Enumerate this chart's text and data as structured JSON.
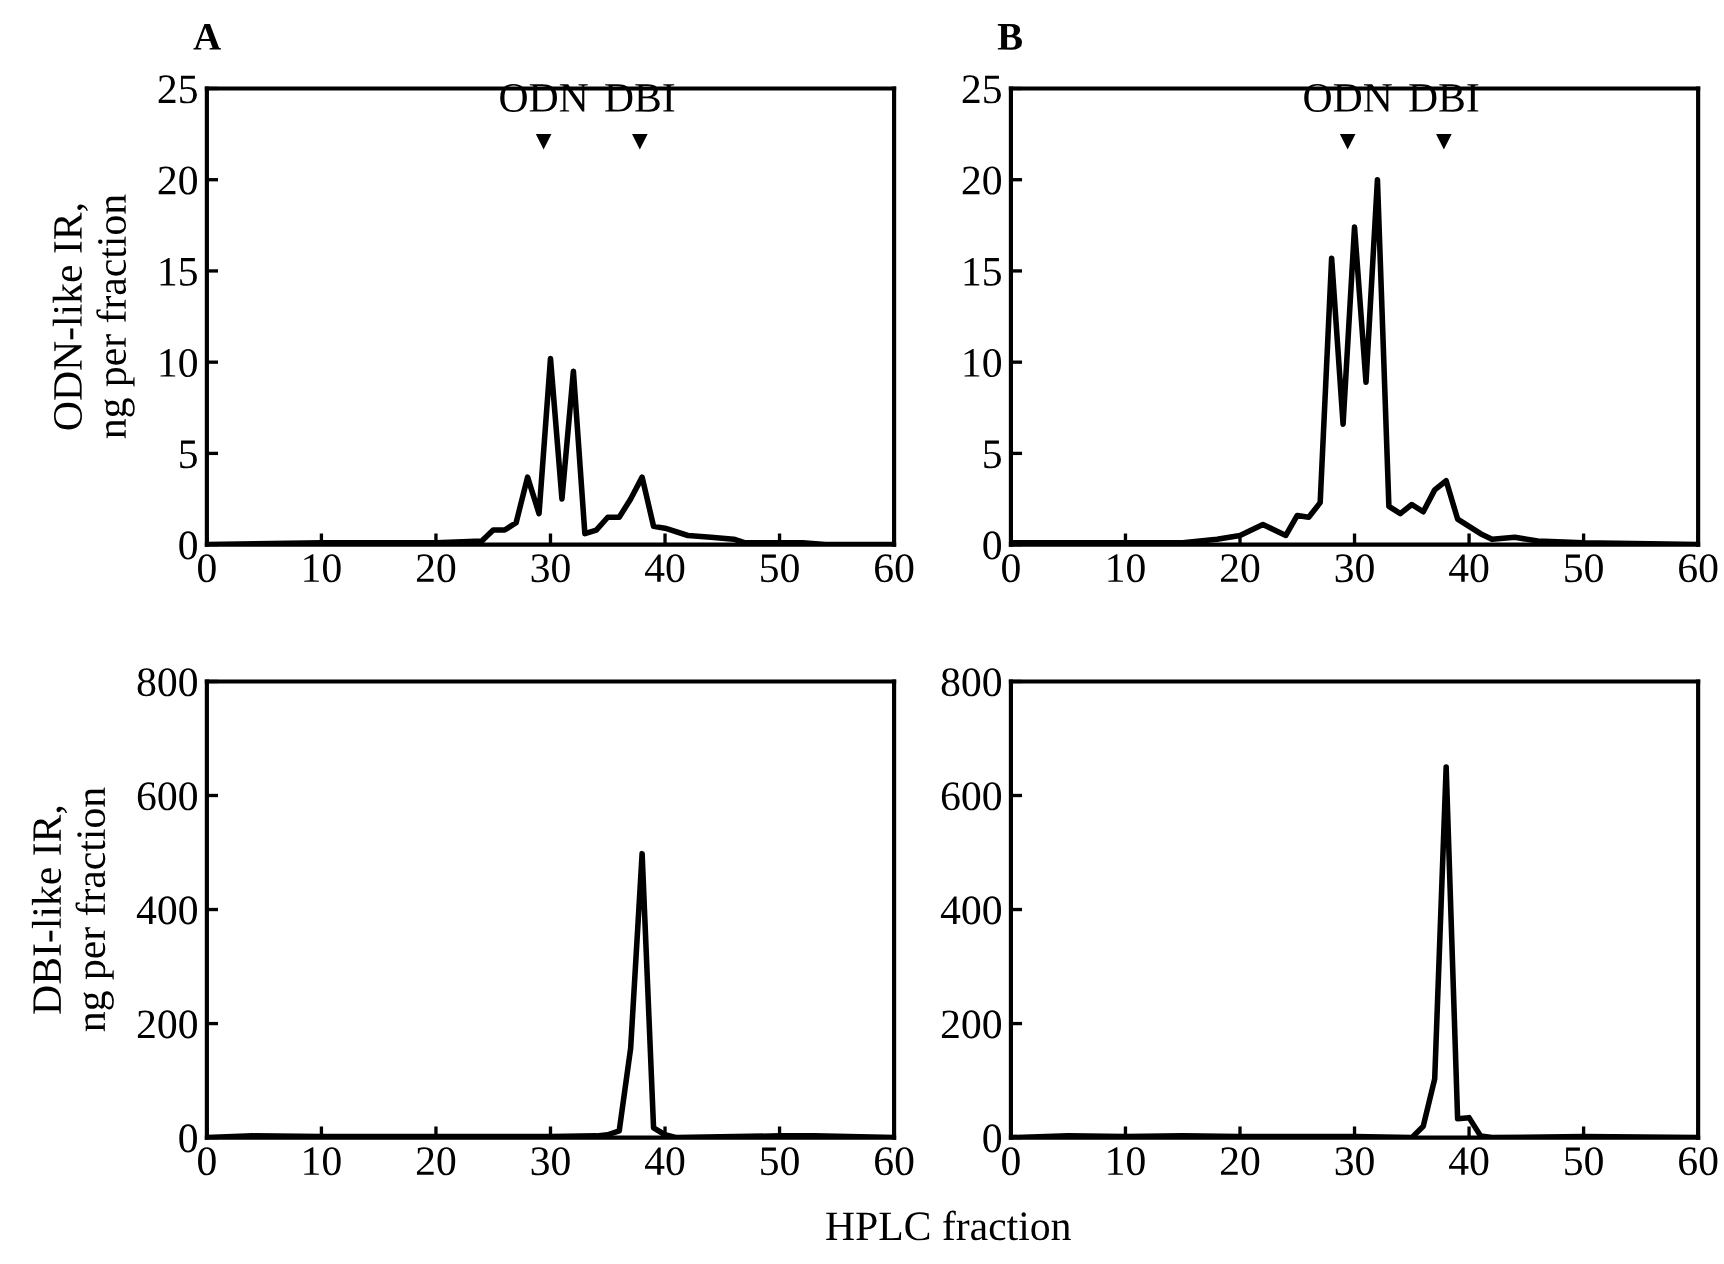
{
  "chart_data": [
    {
      "type": "line",
      "title": "A",
      "ylabel": "ODN-like IR,\nng per fraction",
      "xlim": [
        0,
        60
      ],
      "xticks": [
        0,
        10,
        20,
        30,
        40,
        50,
        60
      ],
      "ylim": [
        0,
        25
      ],
      "yticks": [
        0,
        5,
        10,
        15,
        20,
        25
      ],
      "grid": false,
      "legend": false,
      "annotations": [
        "ODN",
        "DBI"
      ],
      "series": [
        {
          "color": "#000000",
          "x": [
            0,
            10,
            20,
            24,
            25,
            26,
            27,
            28,
            29,
            30,
            31,
            32,
            33,
            34,
            35,
            36,
            37,
            38,
            39,
            40,
            42,
            44,
            46,
            47,
            50,
            52,
            54,
            60
          ],
          "values": [
            0,
            0.1,
            0.1,
            0.2,
            0.8,
            0.8,
            1.2,
            3.7,
            1.7,
            10.2,
            2.5,
            9.5,
            0.6,
            0.8,
            1.5,
            1.5,
            2.5,
            3.7,
            1.0,
            0.9,
            0.5,
            0.4,
            0.3,
            0.1,
            0.1,
            0.1,
            0,
            0
          ]
        }
      ]
    },
    {
      "type": "line",
      "title": "B",
      "xlim": [
        0,
        60
      ],
      "xticks": [
        0,
        10,
        20,
        30,
        40,
        50,
        60
      ],
      "ylim": [
        0,
        25
      ],
      "yticks": [
        0,
        5,
        10,
        15,
        20,
        25
      ],
      "grid": false,
      "legend": false,
      "annotations": [
        "ODN",
        "DBI"
      ],
      "series": [
        {
          "color": "#000000",
          "x": [
            0,
            10,
            15,
            18,
            20,
            22,
            24,
            25,
            26,
            27,
            28,
            29,
            30,
            31,
            32,
            33,
            34,
            35,
            36,
            37,
            38,
            39,
            40,
            41,
            42,
            44,
            46,
            50,
            60
          ],
          "values": [
            0.1,
            0.1,
            0.1,
            0.3,
            0.5,
            1.1,
            0.5,
            1.6,
            1.5,
            2.3,
            15.7,
            6.6,
            17.4,
            8.9,
            20,
            2.1,
            1.7,
            2.2,
            1.8,
            3.0,
            3.5,
            1.4,
            1.0,
            0.6,
            0.3,
            0.4,
            0.2,
            0.1,
            0
          ]
        }
      ]
    },
    {
      "type": "line",
      "ylabel": "DBI-like IR,\nng per fraction",
      "xlabel": "HPLC fraction",
      "xlim": [
        0,
        60
      ],
      "xticks": [
        0,
        10,
        20,
        30,
        40,
        50,
        60
      ],
      "ylim": [
        0,
        800
      ],
      "yticks": [
        0,
        200,
        400,
        600,
        800
      ],
      "grid": false,
      "legend": false,
      "series": [
        {
          "color": "#000000",
          "x": [
            0,
            4,
            10,
            20,
            30,
            34,
            35,
            36,
            37,
            38,
            39,
            40,
            41,
            50,
            53,
            60
          ],
          "values": [
            0,
            3,
            2,
            2,
            2,
            3,
            5,
            12,
            157,
            498,
            17,
            5,
            0,
            3,
            3,
            0
          ]
        }
      ]
    },
    {
      "type": "line",
      "xlim": [
        0,
        60
      ],
      "xticks": [
        0,
        10,
        20,
        30,
        40,
        50,
        60
      ],
      "ylim": [
        0,
        800
      ],
      "yticks": [
        0,
        200,
        400,
        600,
        800
      ],
      "grid": false,
      "legend": false,
      "series": [
        {
          "color": "#000000",
          "x": [
            0,
            5,
            10,
            15,
            20,
            30,
            35,
            36,
            37,
            38,
            39,
            40,
            41,
            42,
            50,
            60
          ],
          "values": [
            0,
            3,
            2,
            3,
            2,
            2,
            0,
            20,
            103,
            650,
            33,
            35,
            3,
            0,
            2,
            0
          ]
        }
      ]
    }
  ]
}
